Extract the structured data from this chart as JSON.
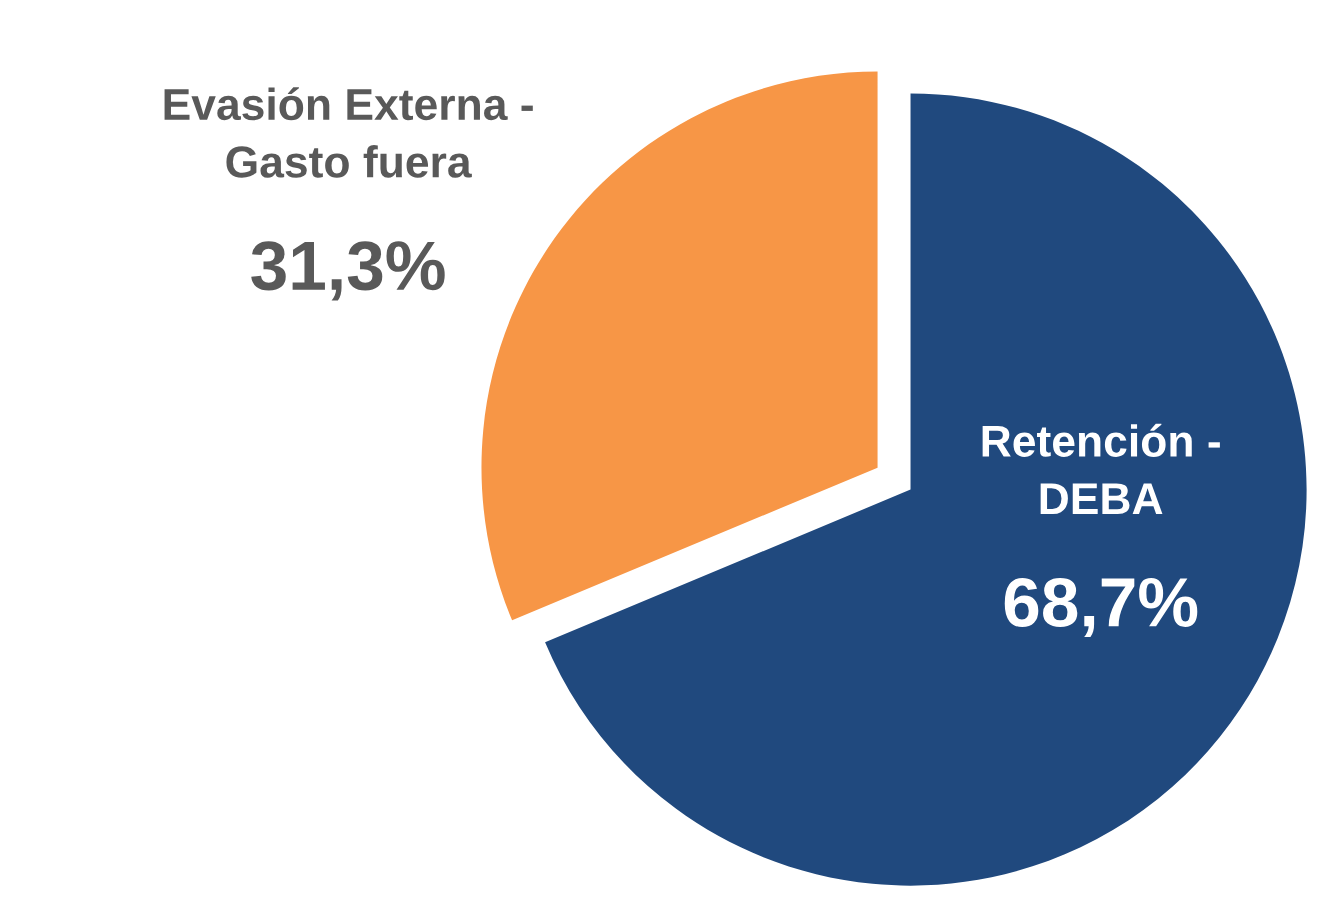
{
  "chart_data": {
    "type": "pie",
    "categories": [
      "Retención -\nDEBA",
      "Evasión Externa -\nGasto fuera"
    ],
    "values": [
      68.7,
      31.3
    ],
    "colors": [
      "#20497e",
      "#f79646"
    ],
    "value_labels": [
      "68,7%",
      "31,3%"
    ]
  }
}
